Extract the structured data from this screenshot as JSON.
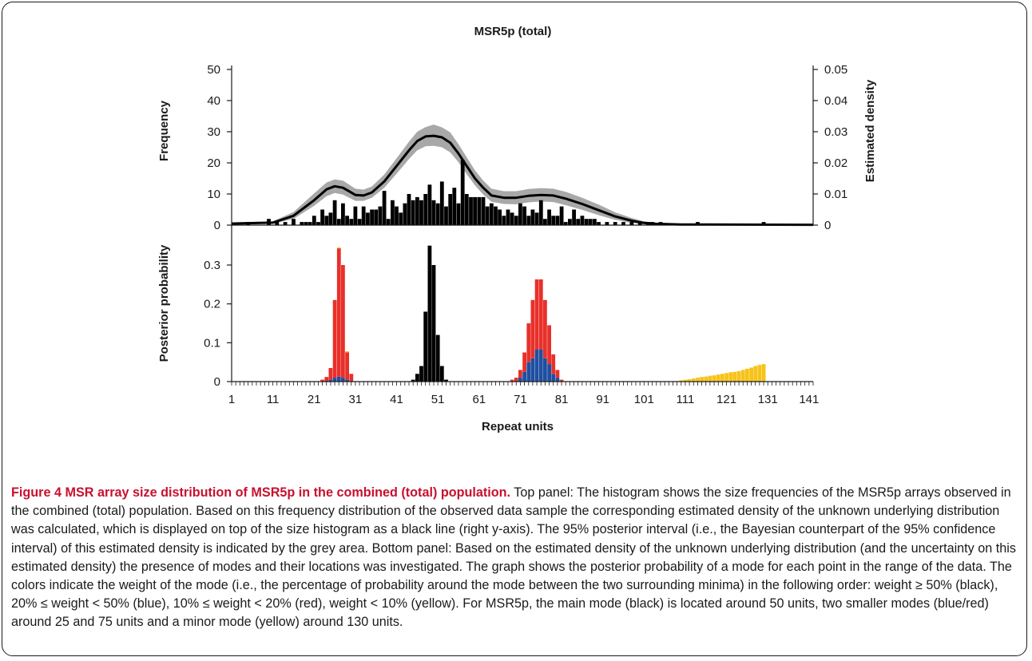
{
  "figure": {
    "label": "Figure 4",
    "title_bold": "MSR array size distribution of MSR5p in the combined (total) population.",
    "caption": "Top panel: The histogram shows the size frequencies of the MSR5p arrays observed in the combined (total) population. Based on this frequency distribution of the observed data sample the corresponding estimated density of the unknown underlying distribution was calculated, which is displayed on top of the size histogram as a black line (right y-axis). The 95% posterior interval (i.e., the Bayesian counterpart of the 95% confidence interval) of this estimated density is indicated by the grey area. Bottom panel: Based on the estimated density of the unknown underlying distribution (and the uncertainty on this estimated density) the presence of modes and their locations was investigated. The graph shows the posterior probability of a mode for each point in the range of the data. The colors indicate the weight of the mode (i.e., the percentage of probability around the mode between the two surrounding minima) in the following order: weight ≥ 50% (black), 20% ≤ weight < 50% (blue), 10% ≤ weight < 20% (red), weight < 10% (yellow). For MSR5p, the main mode (black) is located around 50 units, two smaller modes (blue/red) around 25 and 75 units and a minor mode (yellow) around 130 units."
  },
  "chart_data": [
    {
      "panel": "top",
      "type": "bar",
      "title": "MSR5p (total)",
      "xlabel": "",
      "ylabel": "Frequency",
      "ylabel_right": "Estimated density",
      "xlim": [
        1,
        142
      ],
      "ylim": [
        0,
        50
      ],
      "ylim_right": [
        0,
        0.05
      ],
      "yticks": [
        "0",
        "10",
        "20",
        "30",
        "40",
        "50"
      ],
      "yticks_right": [
        "0",
        "0.01",
        "0.02",
        "0.03",
        "0.04",
        "0.05"
      ],
      "grid": false,
      "bar_color": "#000000",
      "bars": [
        [
          5,
          1
        ],
        [
          10,
          2
        ],
        [
          12,
          1
        ],
        [
          14,
          1
        ],
        [
          16,
          2
        ],
        [
          18,
          1
        ],
        [
          19,
          1
        ],
        [
          20,
          1
        ],
        [
          21,
          3
        ],
        [
          22,
          1
        ],
        [
          23,
          5
        ],
        [
          24,
          3
        ],
        [
          25,
          4
        ],
        [
          26,
          8
        ],
        [
          27,
          2
        ],
        [
          28,
          7
        ],
        [
          29,
          3
        ],
        [
          30,
          2
        ],
        [
          31,
          6
        ],
        [
          32,
          2
        ],
        [
          33,
          6
        ],
        [
          34,
          4
        ],
        [
          35,
          5
        ],
        [
          36,
          5
        ],
        [
          37,
          6
        ],
        [
          38,
          11
        ],
        [
          39,
          2
        ],
        [
          40,
          8
        ],
        [
          41,
          6
        ],
        [
          42,
          4
        ],
        [
          43,
          7
        ],
        [
          44,
          10
        ],
        [
          45,
          8
        ],
        [
          46,
          9
        ],
        [
          47,
          8
        ],
        [
          48,
          10
        ],
        [
          49,
          13
        ],
        [
          50,
          8
        ],
        [
          51,
          7
        ],
        [
          52,
          14
        ],
        [
          53,
          6
        ],
        [
          54,
          10
        ],
        [
          55,
          12
        ],
        [
          56,
          7
        ],
        [
          57,
          21
        ],
        [
          58,
          10
        ],
        [
          59,
          9
        ],
        [
          60,
          9
        ],
        [
          61,
          9
        ],
        [
          62,
          9
        ],
        [
          63,
          6
        ],
        [
          64,
          7
        ],
        [
          65,
          6
        ],
        [
          66,
          5
        ],
        [
          67,
          3
        ],
        [
          68,
          5
        ],
        [
          69,
          4
        ],
        [
          70,
          3
        ],
        [
          71,
          7
        ],
        [
          72,
          6
        ],
        [
          73,
          3
        ],
        [
          74,
          5
        ],
        [
          75,
          4
        ],
        [
          76,
          8
        ],
        [
          77,
          2
        ],
        [
          78,
          5
        ],
        [
          79,
          3
        ],
        [
          80,
          3
        ],
        [
          81,
          6
        ],
        [
          82,
          1
        ],
        [
          83,
          2
        ],
        [
          84,
          5
        ],
        [
          85,
          2
        ],
        [
          86,
          3
        ],
        [
          87,
          2
        ],
        [
          88,
          2
        ],
        [
          89,
          2
        ],
        [
          90,
          1
        ],
        [
          92,
          1
        ],
        [
          94,
          1
        ],
        [
          96,
          1
        ],
        [
          98,
          1
        ],
        [
          100,
          1
        ],
        [
          102,
          1
        ],
        [
          103,
          1
        ],
        [
          105,
          1
        ],
        [
          114,
          1
        ],
        [
          130,
          1
        ]
      ],
      "density_x": [
        1,
        11,
        16,
        21,
        24,
        26,
        28,
        31,
        33,
        35,
        38,
        41,
        44,
        46,
        48,
        50,
        52,
        54,
        56,
        58,
        60,
        62,
        64,
        67,
        70,
        73,
        76,
        79,
        82,
        86,
        90,
        94,
        98,
        101,
        104,
        110,
        142
      ],
      "density_y": [
        0.0005,
        0.0008,
        0.003,
        0.008,
        0.0115,
        0.0125,
        0.012,
        0.0097,
        0.0095,
        0.0105,
        0.014,
        0.019,
        0.024,
        0.027,
        0.0285,
        0.0287,
        0.0282,
        0.0265,
        0.023,
        0.019,
        0.015,
        0.012,
        0.0095,
        0.0088,
        0.0088,
        0.0094,
        0.0097,
        0.0095,
        0.0085,
        0.0068,
        0.0048,
        0.0028,
        0.0014,
        0.0007,
        0.0004,
        0.0002,
        0.0001
      ],
      "band_lower": [
        0.0002,
        0.0005,
        0.002,
        0.0062,
        0.0093,
        0.0103,
        0.0098,
        0.0078,
        0.0078,
        0.0088,
        0.012,
        0.0165,
        0.0212,
        0.024,
        0.0253,
        0.0255,
        0.025,
        0.0234,
        0.0202,
        0.0164,
        0.0128,
        0.0098,
        0.0075,
        0.0068,
        0.0067,
        0.0073,
        0.0076,
        0.0074,
        0.0064,
        0.0049,
        0.0032,
        0.0017,
        0.0007,
        0.0003,
        0.0001,
        0.0,
        0.0
      ],
      "band_upper": [
        0.0009,
        0.0012,
        0.0042,
        0.0102,
        0.0137,
        0.0147,
        0.0143,
        0.0117,
        0.0114,
        0.0124,
        0.0162,
        0.0215,
        0.0268,
        0.03,
        0.0315,
        0.0323,
        0.0314,
        0.0298,
        0.026,
        0.0218,
        0.0176,
        0.0143,
        0.0117,
        0.0109,
        0.0109,
        0.0116,
        0.0119,
        0.0117,
        0.0107,
        0.0088,
        0.0066,
        0.0041,
        0.0023,
        0.0012,
        0.0007,
        0.0004,
        0.0002
      ],
      "line_color": "#000000",
      "band_color": "#a8a8a8"
    },
    {
      "panel": "bottom",
      "type": "bar",
      "title": "",
      "xlabel": "Repeat units",
      "ylabel": "Posterior probability",
      "xlim": [
        1,
        142
      ],
      "ylim": [
        0,
        0.35
      ],
      "yticks": [
        "0",
        "0.1",
        "0.2",
        "0.3"
      ],
      "xticks": [
        "1",
        "11",
        "21",
        "31",
        "41",
        "51",
        "61",
        "71",
        "81",
        "91",
        "101",
        "111",
        "121",
        "131",
        "141"
      ],
      "grid": false,
      "legend": "none",
      "weight_classes": {
        "black": "weight ≥ 50%",
        "blue": "20% ≤ weight < 50%",
        "red": "10% ≤ weight < 20%",
        "yellow": "weight < 10%"
      },
      "colors": {
        "black": "#000000",
        "blue": "#1f4fa0",
        "red": "#e8302a",
        "yellow": "#f7c31a"
      },
      "stacks": [
        {
          "x": 23,
          "red": 0.005
        },
        {
          "x": 24,
          "red": 0.01,
          "blue": 0.002
        },
        {
          "x": 25,
          "red": 0.03,
          "blue": 0.005
        },
        {
          "x": 26,
          "red": 0.2,
          "blue": 0.01
        },
        {
          "x": 27,
          "red": 0.33,
          "blue": 0.013,
          "yellow": 0.002
        },
        {
          "x": 28,
          "red": 0.29,
          "blue": 0.01
        },
        {
          "x": 29,
          "red": 0.07,
          "blue": 0.005,
          "yellow": 0.003
        },
        {
          "x": 30,
          "red": 0.02
        },
        {
          "x": 45,
          "black": 0.005
        },
        {
          "x": 46,
          "black": 0.02
        },
        {
          "x": 47,
          "black": 0.04
        },
        {
          "x": 48,
          "black": 0.18
        },
        {
          "x": 49,
          "black": 0.35
        },
        {
          "x": 50,
          "black": 0.3
        },
        {
          "x": 51,
          "black": 0.12
        },
        {
          "x": 52,
          "black": 0.04
        },
        {
          "x": 53,
          "black": 0.005
        },
        {
          "x": 69,
          "red": 0.005
        },
        {
          "x": 70,
          "red": 0.01
        },
        {
          "x": 71,
          "red": 0.02,
          "blue": 0.01
        },
        {
          "x": 72,
          "red": 0.05,
          "blue": 0.025
        },
        {
          "x": 73,
          "red": 0.1,
          "blue": 0.05
        },
        {
          "x": 74,
          "red": 0.15,
          "blue": 0.06
        },
        {
          "x": 75,
          "red": 0.18,
          "blue": 0.083
        },
        {
          "x": 76,
          "red": 0.18,
          "blue": 0.083
        },
        {
          "x": 77,
          "red": 0.15,
          "blue": 0.06
        },
        {
          "x": 78,
          "red": 0.1,
          "blue": 0.045
        },
        {
          "x": 79,
          "red": 0.05,
          "blue": 0.02
        },
        {
          "x": 80,
          "red": 0.02,
          "blue": 0.01
        },
        {
          "x": 81,
          "red": 0.005
        },
        {
          "x": 110,
          "yellow": 0.003
        },
        {
          "x": 111,
          "yellow": 0.005
        },
        {
          "x": 112,
          "yellow": 0.006
        },
        {
          "x": 113,
          "yellow": 0.008
        },
        {
          "x": 114,
          "yellow": 0.01
        },
        {
          "x": 115,
          "yellow": 0.012
        },
        {
          "x": 116,
          "yellow": 0.013
        },
        {
          "x": 117,
          "yellow": 0.015
        },
        {
          "x": 118,
          "yellow": 0.016
        },
        {
          "x": 119,
          "yellow": 0.018
        },
        {
          "x": 120,
          "yellow": 0.02
        },
        {
          "x": 121,
          "yellow": 0.022
        },
        {
          "x": 122,
          "yellow": 0.024
        },
        {
          "x": 123,
          "yellow": 0.025
        },
        {
          "x": 124,
          "yellow": 0.027
        },
        {
          "x": 125,
          "yellow": 0.03
        },
        {
          "x": 126,
          "yellow": 0.033
        },
        {
          "x": 127,
          "yellow": 0.036
        },
        {
          "x": 128,
          "yellow": 0.04
        },
        {
          "x": 129,
          "yellow": 0.043
        },
        {
          "x": 130,
          "yellow": 0.045
        }
      ]
    }
  ]
}
